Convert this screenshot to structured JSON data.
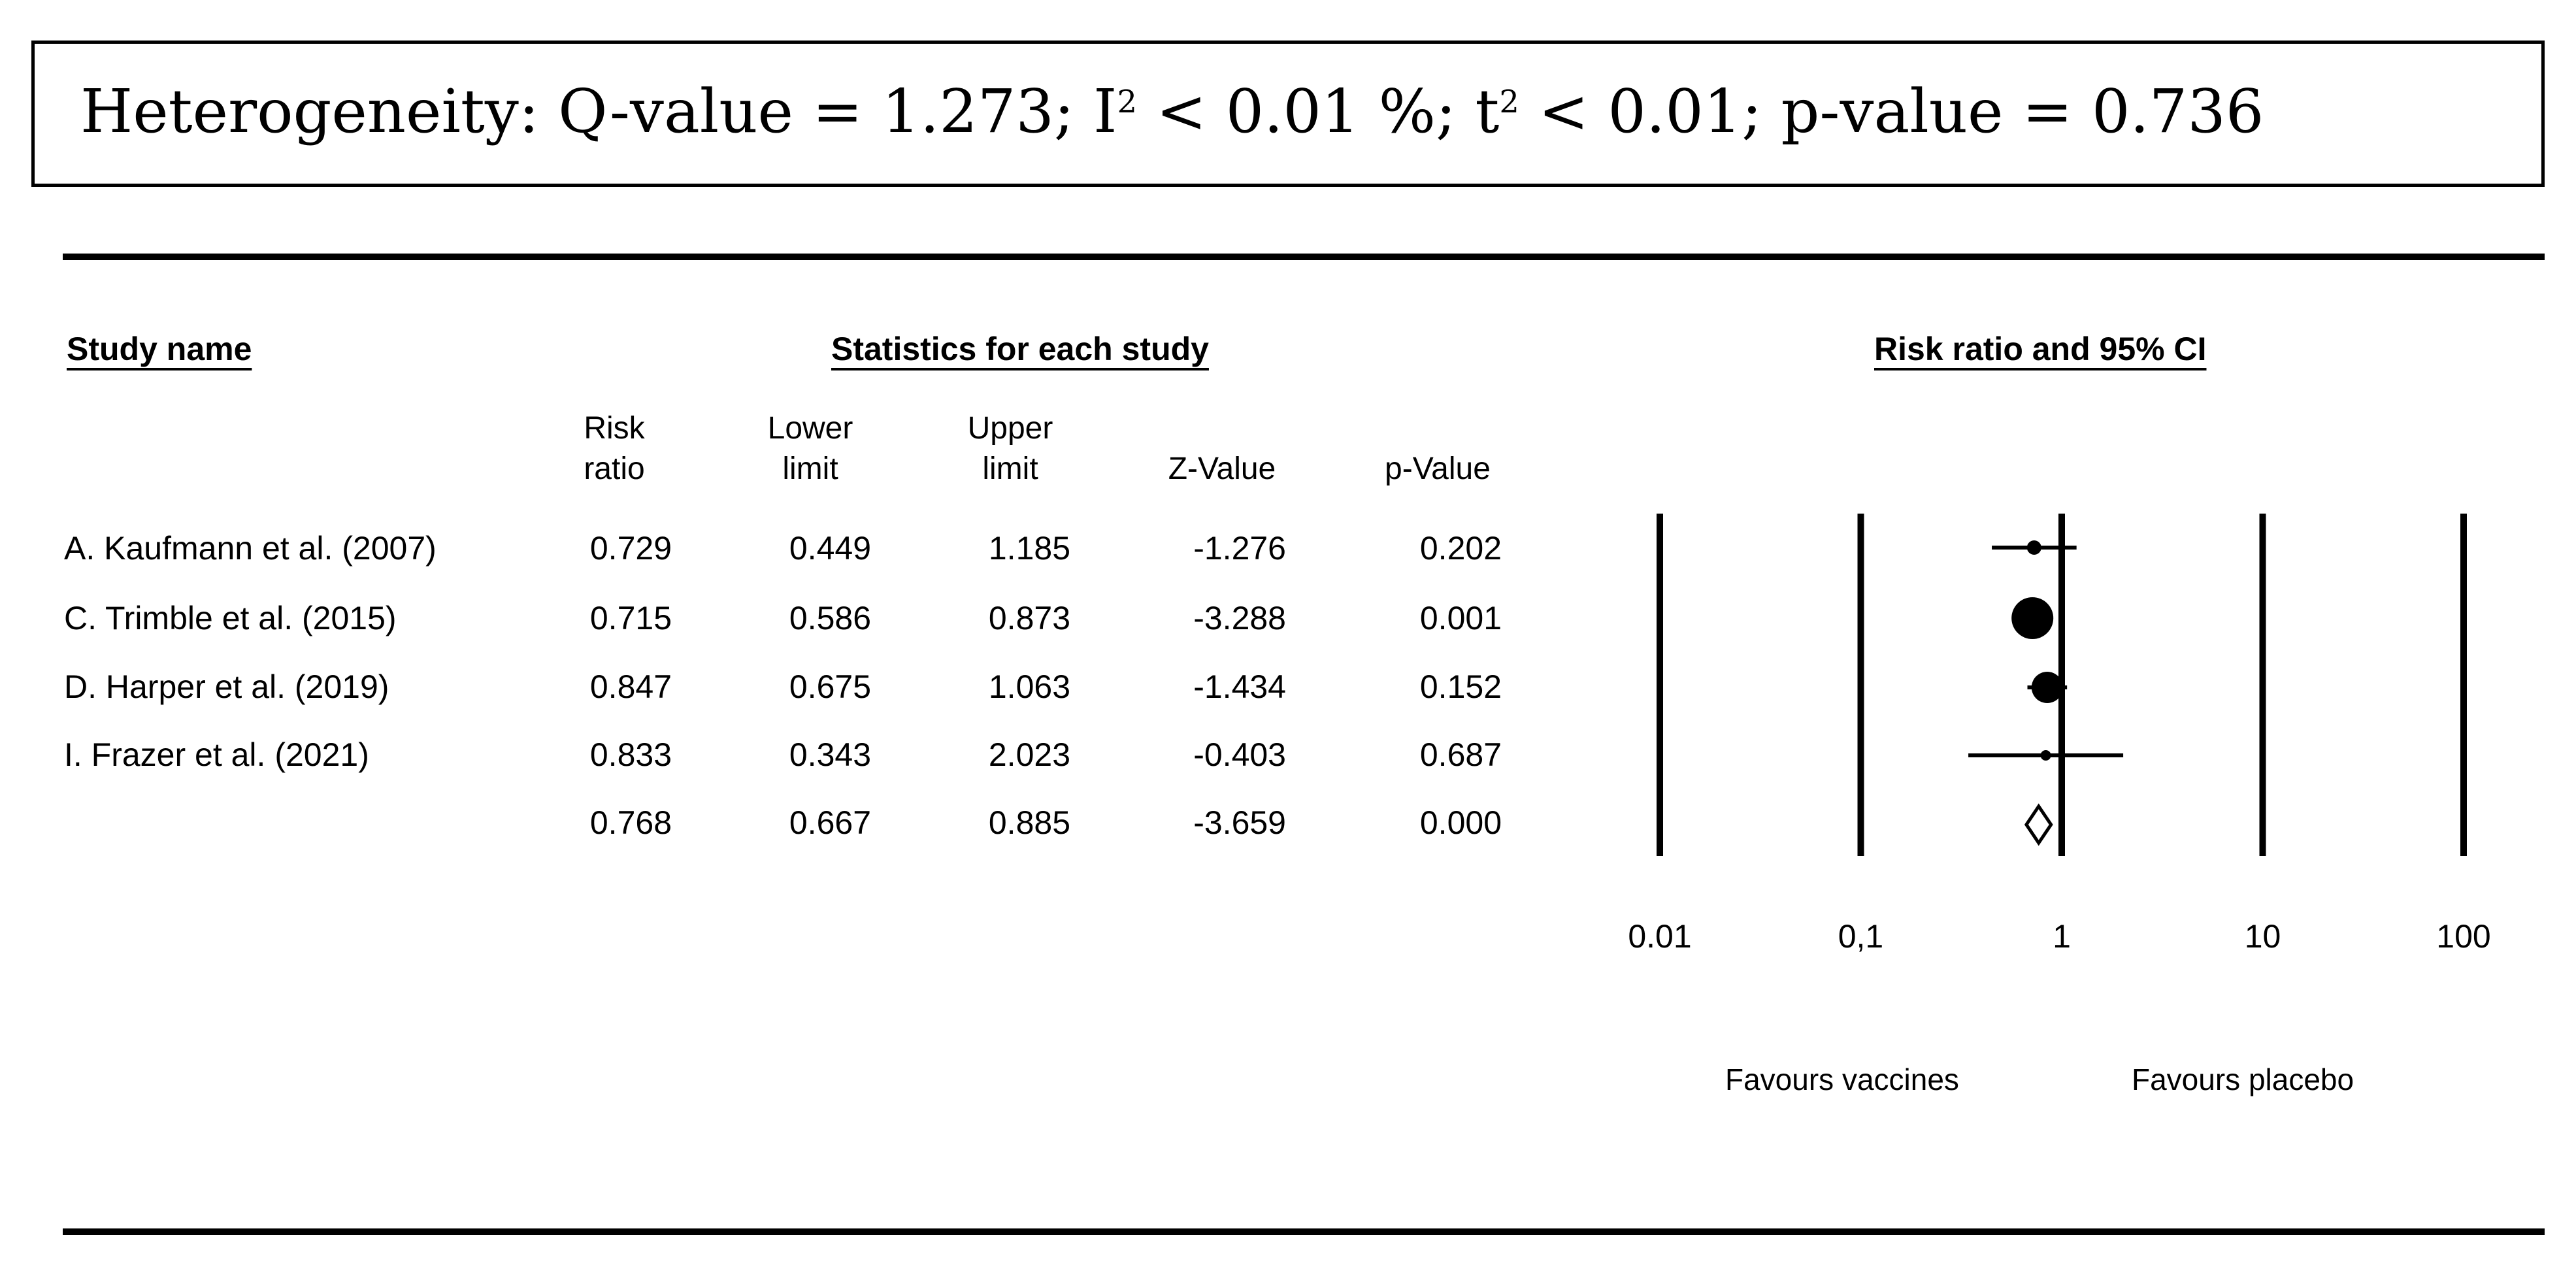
{
  "heterogeneity": {
    "prefix": "Heterogeneity: Q-value = 1.273; I",
    "i2_sup": "2",
    "mid": " < 0.01 %; t",
    "t2_sup": "2",
    "suffix": " < 0.01; p-value = 0.736"
  },
  "headers": {
    "study_name": "Study name",
    "statistics": "Statistics for each study",
    "plot": "Risk ratio and 95% CI"
  },
  "columns": [
    {
      "l1": "Risk",
      "l2": "ratio"
    },
    {
      "l1": "Lower",
      "l2": "limit"
    },
    {
      "l1": "Upper",
      "l2": "limit"
    },
    {
      "l1": "",
      "l2": "Z-Value"
    },
    {
      "l1": "",
      "l2": "p-Value"
    }
  ],
  "rows": [
    {
      "study": "A. Kaufmann et al. (2007)",
      "rr": "0.729",
      "lower": "0.449",
      "upper": "1.185",
      "z": "-1.276",
      "p": "0.202"
    },
    {
      "study": "C. Trimble et al. (2015)",
      "rr": "0.715",
      "lower": "0.586",
      "upper": "0.873",
      "z": "-3.288",
      "p": "0.001"
    },
    {
      "study": "D. Harper et al. (2019)",
      "rr": "0.847",
      "lower": "0.675",
      "upper": "1.063",
      "z": "-1.434",
      "p": "0.152"
    },
    {
      "study": "I. Frazer et al. (2021)",
      "rr": "0.833",
      "lower": "0.343",
      "upper": "2.023",
      "z": "-0.403",
      "p": "0.687"
    },
    {
      "study": "",
      "rr": "0.768",
      "lower": "0.667",
      "upper": "0.885",
      "z": "-3.659",
      "p": "0.000"
    }
  ],
  "favours": {
    "left": "Favours vaccines",
    "right": "Favours placebo"
  },
  "chart_data": {
    "type": "forest",
    "title": "Risk ratio and 95% CI",
    "x_scale": "log",
    "xlim": [
      0.01,
      100
    ],
    "x_ticks": [
      {
        "value": 0.01,
        "label": "0.01"
      },
      {
        "value": 0.1,
        "label": "0,1"
      },
      {
        "value": 1,
        "label": "1"
      },
      {
        "value": 10,
        "label": "10"
      },
      {
        "value": 100,
        "label": "100"
      }
    ],
    "gridlines": [
      0.01,
      0.1,
      1,
      10,
      100
    ],
    "studies": [
      {
        "name": "A. Kaufmann et al. (2007)",
        "rr": 0.729,
        "lower": 0.449,
        "upper": 1.185,
        "weight": "small"
      },
      {
        "name": "C. Trimble et al. (2015)",
        "rr": 0.715,
        "lower": 0.586,
        "upper": 0.873,
        "weight": "large"
      },
      {
        "name": "D. Harper et al. (2019)",
        "rr": 0.847,
        "lower": 0.675,
        "upper": 1.063,
        "weight": "medium"
      },
      {
        "name": "I. Frazer et al. (2021)",
        "rr": 0.833,
        "lower": 0.343,
        "upper": 2.023,
        "weight": "tiny"
      }
    ],
    "summary": {
      "rr": 0.768,
      "lower": 0.667,
      "upper": 0.885
    },
    "favours_left": "Favours vaccines",
    "favours_right": "Favours placebo"
  }
}
